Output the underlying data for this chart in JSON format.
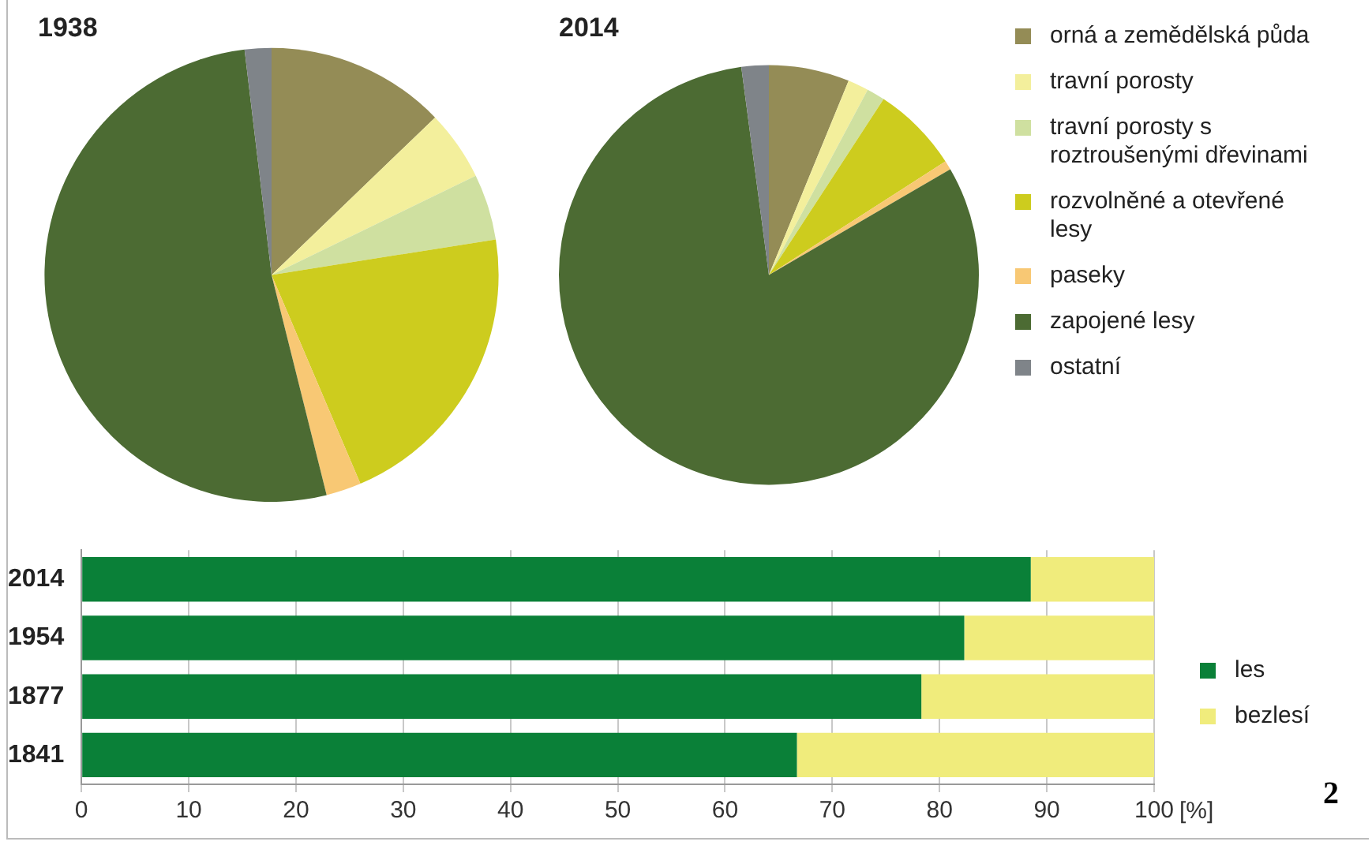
{
  "chart_data": [
    {
      "type": "pie",
      "categories": [
        "orná a zemědělská půda",
        "travní porosty",
        "travní porosty s roztroušenými dřevinami",
        "rozvolněné a otevřené lesy",
        "paseky",
        "zapojené lesy",
        "ostatní"
      ],
      "colors": [
        "#948c56",
        "#f3ef9c",
        "#cfe0a0",
        "#cdcc1e",
        "#f8c874",
        "#4c6b33",
        "#7f8489"
      ],
      "legend": "right",
      "series": [
        {
          "name": "1938",
          "values": [
            12.8,
            5,
            4.7,
            21.1,
            2.5,
            52,
            1.9
          ]
        },
        {
          "name": "2014",
          "values": [
            6.2,
            1.6,
            1.4,
            6.7,
            0.7,
            81.3,
            2.1
          ]
        }
      ]
    },
    {
      "type": "bar",
      "orientation": "horizontal",
      "stacked": true,
      "categories": [
        "2014",
        "1954",
        "1877",
        "1841"
      ],
      "series": [
        {
          "name": "les",
          "color": "#0a8038",
          "values": [
            88.5,
            82.3,
            78.3,
            66.7
          ]
        },
        {
          "name": "bezlesí",
          "color": "#f0ec7c",
          "values": [
            11.5,
            17.7,
            21.7,
            33.3
          ]
        }
      ],
      "xlim": [
        0,
        100
      ],
      "xticks": [
        0,
        10,
        20,
        30,
        40,
        50,
        60,
        70,
        80,
        90,
        100
      ],
      "xlabel": "[%]",
      "grid": "x",
      "legend": "right",
      "annotations": [
        "2"
      ]
    }
  ]
}
